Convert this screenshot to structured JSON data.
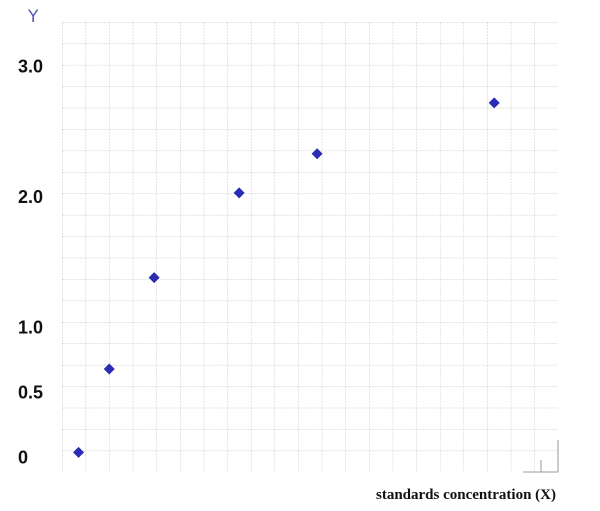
{
  "chart_data": {
    "type": "scatter",
    "y_label": "Y",
    "x_label": "standards concentration (X)",
    "x": [
      0.7,
      2.0,
      3.9,
      7.5,
      10.8,
      18.3
    ],
    "values": [
      0.05,
      0.69,
      1.39,
      2.04,
      2.34,
      2.73
    ],
    "color": "#2b2bb3",
    "xlim": [
      0,
      21
    ],
    "ylim": [
      -0.1,
      3.35
    ],
    "yticks": [
      {
        "value": 0,
        "label": "0"
      },
      {
        "value": 0.5,
        "label": "0.5"
      },
      {
        "value": 1,
        "label": "1.0"
      },
      {
        "value": 2,
        "label": "2.0"
      },
      {
        "value": 3,
        "label": "3.0"
      }
    ]
  }
}
